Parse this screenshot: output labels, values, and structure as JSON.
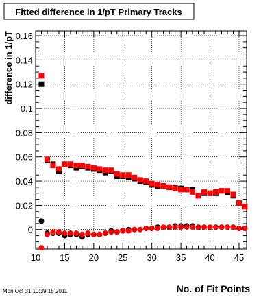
{
  "chart_data": {
    "type": "scatter",
    "title": "Fitted difference in 1/pT Primary Tracks",
    "xlabel": "No. of Fit Points",
    "ylabel": "difference in 1/pT",
    "footer": "Mon Oct 31 10:39:15 2011",
    "xlim": [
      10,
      46.3
    ],
    "ylim": [
      -0.016,
      0.164
    ],
    "grid": true,
    "x_ticks": [
      "10",
      "15",
      "20",
      "25",
      "30",
      "35",
      "40",
      "45"
    ],
    "y_ticks": [
      "0",
      "0.02",
      "0.04",
      "0.06",
      "0.08",
      "0.1",
      "0.12",
      "0.14",
      "0.16"
    ],
    "series": [
      {
        "color": "#000000",
        "marker": "square",
        "x": [
          11,
          12,
          13,
          14,
          15,
          16,
          17,
          18,
          19,
          20,
          21,
          22,
          23,
          24,
          25,
          26,
          27,
          28,
          29,
          30,
          31,
          32,
          33,
          34,
          35,
          36,
          37,
          38,
          39,
          40,
          41,
          42,
          43,
          44,
          45,
          46
        ],
        "y": [
          0.12,
          0.057,
          0.054,
          0.048,
          0.054,
          0.053,
          0.051,
          0.052,
          0.051,
          0.05,
          0.049,
          0.047,
          0.048,
          0.044,
          0.044,
          0.043,
          0.042,
          0.04,
          0.039,
          0.037,
          0.036,
          0.036,
          0.035,
          0.035,
          0.034,
          0.033,
          0.033,
          0.028,
          0.03,
          0.03,
          0.03,
          0.032,
          0.031,
          0.028,
          0.022,
          0.019
        ]
      },
      {
        "color": "#ff0000",
        "marker": "square",
        "x": [
          11,
          12,
          13,
          14,
          15,
          16,
          17,
          18,
          19,
          20,
          21,
          22,
          23,
          24,
          25,
          26,
          27,
          28,
          29,
          30,
          31,
          32,
          33,
          34,
          35,
          36,
          37,
          38,
          39,
          40,
          41,
          42,
          43,
          44,
          45,
          46
        ],
        "y": [
          0.127,
          0.058,
          0.053,
          0.05,
          0.054,
          0.054,
          0.053,
          0.053,
          0.052,
          0.051,
          0.05,
          0.049,
          0.049,
          0.046,
          0.045,
          0.045,
          0.043,
          0.041,
          0.04,
          0.038,
          0.037,
          0.036,
          0.035,
          0.034,
          0.033,
          0.033,
          0.031,
          0.028,
          0.031,
          0.03,
          0.031,
          0.032,
          0.032,
          0.029,
          0.022,
          0.019
        ]
      },
      {
        "color": "#000000",
        "marker": "circle",
        "x": [
          11,
          12,
          13,
          14,
          15,
          16,
          17,
          18,
          19,
          20,
          21,
          22,
          23,
          24,
          25,
          26,
          27,
          28,
          29,
          30,
          31,
          32,
          33,
          34,
          35,
          36,
          37,
          38,
          39,
          40,
          41,
          42,
          43,
          44,
          45,
          46
        ],
        "y": [
          0.007,
          -0.003,
          -0.003,
          -0.003,
          -0.005,
          -0.004,
          -0.004,
          -0.006,
          -0.004,
          -0.004,
          -0.004,
          -0.003,
          -0.001,
          -0.002,
          -0.001,
          0.0,
          0.0,
          0.0,
          0.001,
          0.001,
          0.002,
          0.002,
          0.002,
          0.003,
          0.003,
          0.003,
          0.003,
          0.002,
          0.002,
          0.002,
          0.002,
          0.002,
          0.002,
          0.002,
          0.001,
          0.001
        ]
      },
      {
        "color": "#ff0000",
        "marker": "circle",
        "x": [
          11,
          12,
          13,
          14,
          15,
          16,
          17,
          18,
          19,
          20,
          21,
          22,
          23,
          24,
          25,
          26,
          27,
          28,
          29,
          30,
          31,
          32,
          33,
          34,
          35,
          36,
          37,
          38,
          39,
          40,
          41,
          42,
          43,
          44,
          45,
          46
        ],
        "y": [
          -0.015,
          -0.004,
          -0.002,
          -0.002,
          -0.003,
          -0.003,
          -0.003,
          -0.004,
          -0.003,
          -0.004,
          -0.004,
          -0.003,
          -0.002,
          -0.002,
          -0.001,
          -0.001,
          0.0,
          0.0,
          0.001,
          0.001,
          0.001,
          0.002,
          0.002,
          0.002,
          0.002,
          0.002,
          0.002,
          0.002,
          0.002,
          0.002,
          0.002,
          0.002,
          0.002,
          0.002,
          0.001,
          0.001
        ]
      }
    ]
  }
}
